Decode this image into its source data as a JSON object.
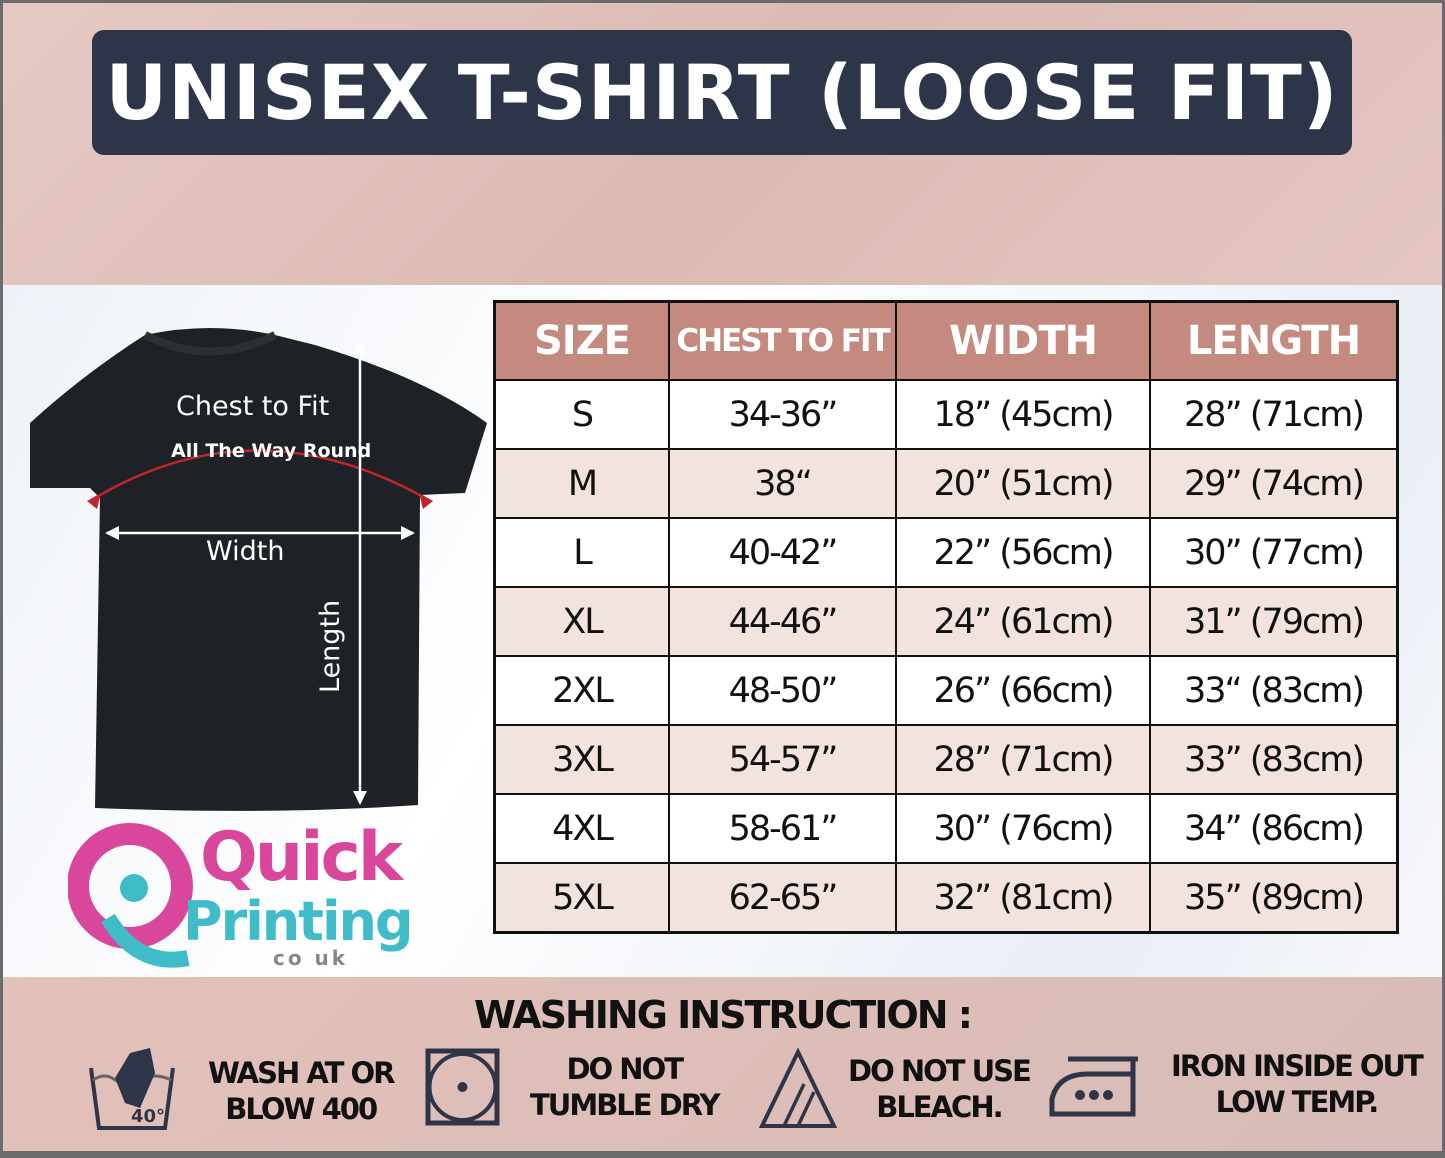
{
  "title": "UNISEX T-SHIRT (LOOSE FIT)",
  "diagram": {
    "chest_label": "Chest to Fit",
    "chest_sublabel": "All The Way Round",
    "width_label": "Width",
    "length_label": "Length"
  },
  "logo": {
    "line1": "Quick",
    "line2": "Printing",
    "line3": "co uk"
  },
  "table": {
    "headers": [
      "SIZE",
      "CHEST TO FIT",
      "WIDTH",
      "LENGTH"
    ],
    "rows": [
      [
        "S",
        "34-36”",
        "18” (45cm)",
        "28” (71cm)"
      ],
      [
        "M",
        "38“",
        "20” (51cm)",
        "29” (74cm)"
      ],
      [
        "L",
        "40-42”",
        "22” (56cm)",
        "30” (77cm)"
      ],
      [
        "XL",
        "44-46”",
        "24” (61cm)",
        "31” (79cm)"
      ],
      [
        "2XL",
        "48-50”",
        "26” (66cm)",
        "33“ (83cm)"
      ],
      [
        "3XL",
        "54-57”",
        "28” (71cm)",
        "33” (83cm)"
      ],
      [
        "4XL",
        "58-61”",
        "30” (76cm)",
        "34” (86cm)"
      ],
      [
        "5XL",
        "62-65”",
        "32” (81cm)",
        "35” (89cm)"
      ]
    ]
  },
  "washing": {
    "title": "WASHING INSTRUCTION :",
    "items": [
      {
        "icon": "wash-40-icon",
        "line1": "WASH AT OR",
        "line2": "BLOW 400",
        "badge": "40°"
      },
      {
        "icon": "no-tumble-dry-icon",
        "line1": "DO NOT",
        "line2": "TUMBLE DRY"
      },
      {
        "icon": "no-bleach-icon",
        "line1": "DO NOT USE",
        "line2": "BLEACH."
      },
      {
        "icon": "iron-low-icon",
        "line1": "IRON INSIDE OUT",
        "line2": "LOW TEMP."
      }
    ]
  },
  "colors": {
    "banner": "#2f3548",
    "header": "#c48a80",
    "alt_row": "#f3e3df",
    "logo_pink": "#d9479d",
    "logo_teal": "#3fbcc8",
    "arrow_red": "#c0262c"
  }
}
